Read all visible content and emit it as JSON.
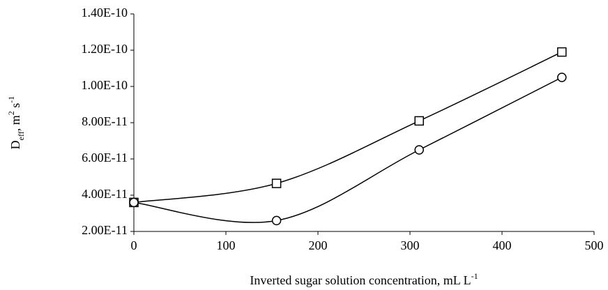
{
  "chart_data": {
    "type": "line",
    "smooth": true,
    "x": [
      0,
      155,
      310,
      465
    ],
    "series": [
      {
        "marker": "square",
        "color": "#000000",
        "values": [
          3.6e-11,
          4.65e-11,
          8.1e-11,
          1.19e-10
        ]
      },
      {
        "marker": "circle",
        "color": "#000000",
        "values": [
          3.6e-11,
          2.6e-11,
          6.5e-11,
          1.05e-10
        ]
      }
    ],
    "xlim": [
      0,
      500
    ],
    "xticks": [
      0,
      100,
      200,
      300,
      400,
      500
    ],
    "ylim": [
      2e-11,
      1.4e-10
    ],
    "yticks": [
      {
        "value": 2e-11,
        "label": "2.00E-11"
      },
      {
        "value": 4e-11,
        "label": "4.00E-11"
      },
      {
        "value": 6e-11,
        "label": "6.00E-11"
      },
      {
        "value": 8e-11,
        "label": "8.00E-11"
      },
      {
        "value": 1e-10,
        "label": "1.00E-10"
      },
      {
        "value": 1.2e-10,
        "label": "1.20E-10"
      },
      {
        "value": 1.4e-10,
        "label": "1.40E-10"
      }
    ],
    "xlabel": [
      {
        "text": "Inverted sugar solution concentration, mL L"
      },
      {
        "text": "-1",
        "shift": "super"
      }
    ],
    "ylabel": [
      {
        "text": "D"
      },
      {
        "text": "eff",
        "shift": "sub"
      },
      {
        "text": ", m"
      },
      {
        "text": "2",
        "shift": "super"
      },
      {
        "text": " s"
      },
      {
        "text": "-1",
        "shift": "super"
      }
    ],
    "grid": false,
    "legend": false
  }
}
